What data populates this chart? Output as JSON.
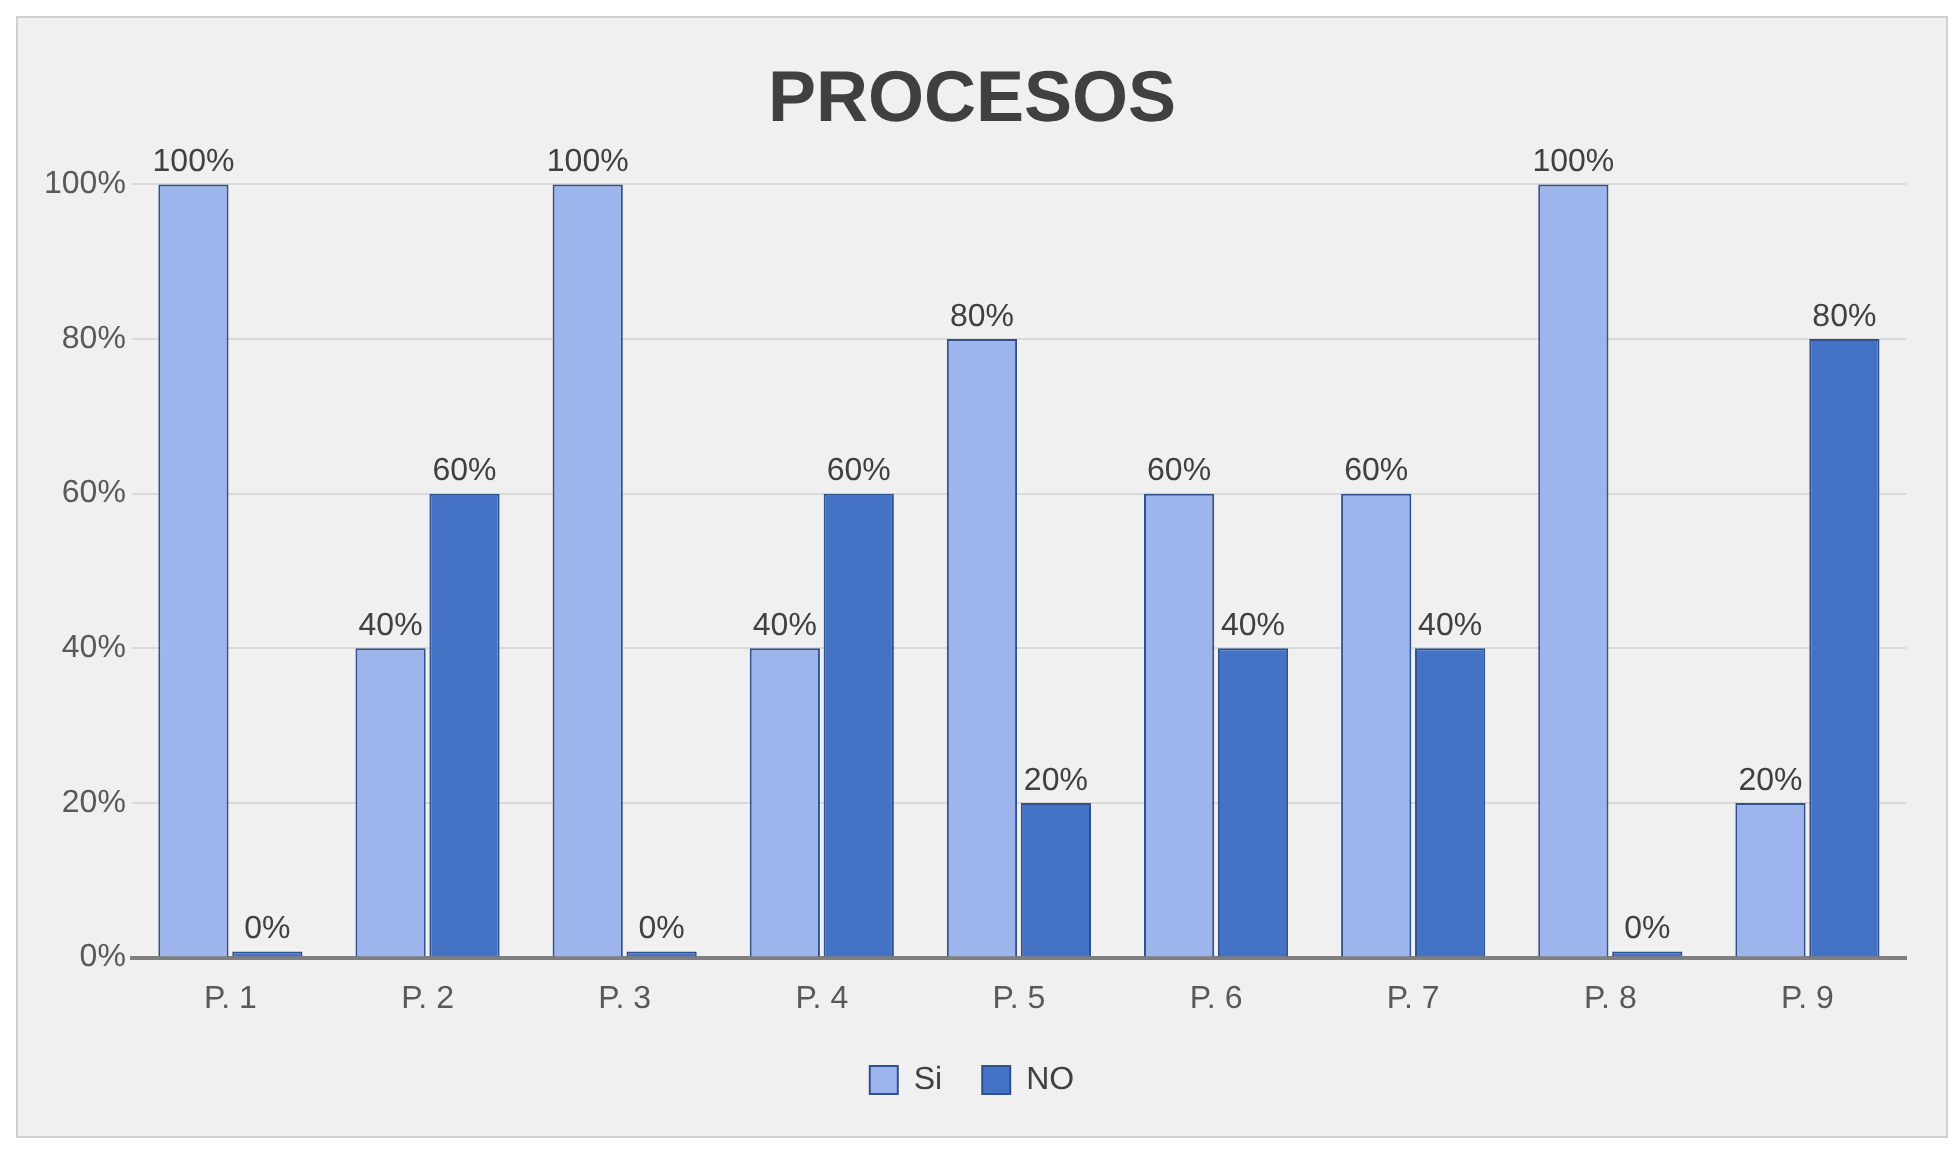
{
  "chart_data": {
    "type": "bar",
    "title": "PROCESOS",
    "categories": [
      "P. 1",
      "P. 2",
      "P. 3",
      "P. 4",
      "P. 5",
      "P. 6",
      "P. 7",
      "P. 8",
      "P. 9"
    ],
    "series": [
      {
        "name": "Si",
        "color": "#9db4ec",
        "values": [
          100,
          40,
          100,
          40,
          80,
          60,
          60,
          100,
          20
        ],
        "value_labels": [
          "100%",
          "40%",
          "100%",
          "40%",
          "80%",
          "60%",
          "60%",
          "100%",
          "20%"
        ]
      },
      {
        "name": "NO",
        "color": "#4472c4",
        "values": [
          0,
          60,
          0,
          60,
          20,
          40,
          40,
          0,
          80
        ],
        "value_labels": [
          "0%",
          "60%",
          "0%",
          "60%",
          "20%",
          "40%",
          "40%",
          "0%",
          "80%"
        ]
      }
    ],
    "ylim": [
      0,
      100
    ],
    "yticks": [
      {
        "value": 0,
        "label": "0%"
      },
      {
        "value": 20,
        "label": "20%"
      },
      {
        "value": 40,
        "label": "40%"
      },
      {
        "value": 60,
        "label": "60%"
      },
      {
        "value": 80,
        "label": "80%"
      },
      {
        "value": 100,
        "label": "100%"
      }
    ],
    "grid": "y",
    "legend": "bottom"
  }
}
